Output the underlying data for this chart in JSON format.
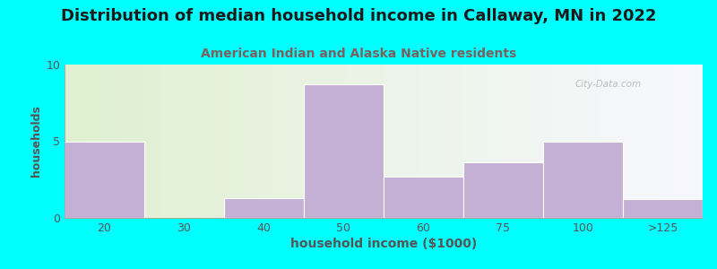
{
  "title": "Distribution of median household income in Callaway, MN in 2022",
  "subtitle": "American Indian and Alaska Native residents",
  "xlabel": "household income ($1000)",
  "ylabel": "households",
  "categories": [
    "20",
    "30",
    "40",
    "50",
    "60",
    "75",
    "100",
    ">125"
  ],
  "values": [
    5,
    0,
    1.3,
    8.7,
    2.7,
    3.6,
    5,
    1.2
  ],
  "bar_color": "#C5B0D5",
  "bar_edge_color": "#C5B0D5",
  "background_color": "#00FFFF",
  "plot_bg_left": "#DFF0D0",
  "plot_bg_right": "#F8F8FF",
  "ylim": [
    0,
    10
  ],
  "yticks": [
    0,
    5,
    10
  ],
  "title_fontsize": 13,
  "subtitle_fontsize": 10,
  "xlabel_fontsize": 10,
  "ylabel_fontsize": 9,
  "watermark": "City-Data.com",
  "subtitle_color": "#7B6060",
  "title_color": "#1a1a1a",
  "tick_color": "#555555",
  "ylabel_color": "#555555",
  "xlabel_color": "#555555"
}
